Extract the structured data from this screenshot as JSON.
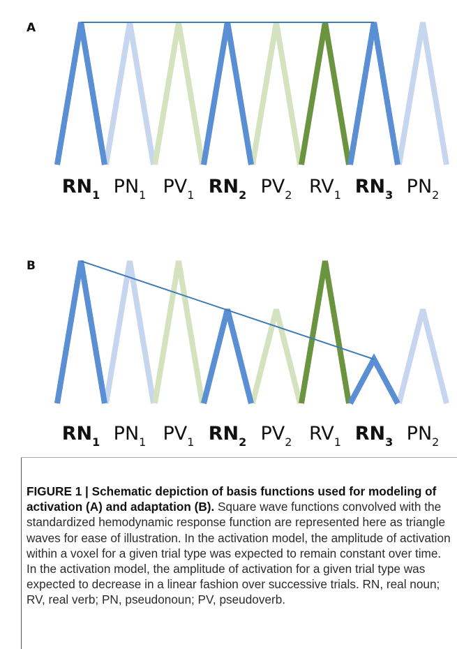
{
  "panels": [
    {
      "letter": "A",
      "labels": [
        {
          "main": "RN",
          "sub": "1",
          "bold": true
        },
        {
          "main": "PN",
          "sub": "1",
          "bold": false
        },
        {
          "main": "PV",
          "sub": "1",
          "bold": false
        },
        {
          "main": "RN",
          "sub": "2",
          "bold": true
        },
        {
          "main": "PV",
          "sub": "2",
          "bold": false
        },
        {
          "main": "RV",
          "sub": "1",
          "bold": false
        },
        {
          "main": "RN",
          "sub": "3",
          "bold": true
        },
        {
          "main": "PN",
          "sub": "2",
          "bold": false
        }
      ]
    },
    {
      "letter": "B",
      "labels": [
        {
          "main": "RN",
          "sub": "1",
          "bold": true
        },
        {
          "main": "PN",
          "sub": "1",
          "bold": false
        },
        {
          "main": "PV",
          "sub": "1",
          "bold": false
        },
        {
          "main": "RN",
          "sub": "2",
          "bold": true
        },
        {
          "main": "PV",
          "sub": "2",
          "bold": false
        },
        {
          "main": "RV",
          "sub": "1",
          "bold": false
        },
        {
          "main": "RN",
          "sub": "3",
          "bold": true
        },
        {
          "main": "PN",
          "sub": "2",
          "bold": false
        }
      ]
    }
  ],
  "colors": {
    "RN": "#5b8fd4",
    "PN": "#c5d6ee",
    "PV": "#d4e2c0",
    "RV": "#6b9440",
    "trend": "#3f7ab8"
  },
  "caption": {
    "title": "FIGURE 1 | Schematic depiction of basis functions used for modeling of activation (A) and adaptation (B).",
    "body": " Square wave functions convolved with the standardized hemodynamic response function are represented here as triangle waves for ease of illustration. In the activation model, the amplitude of activation within a voxel for a given trial type was expected to remain constant over time. In the activation model, the amplitude of activation for a given trial type was expected to decrease in a linear fashion over successive trials. RN, real noun; RV, real verb; PN, pseudonoun; PV, pseudoverb."
  }
}
